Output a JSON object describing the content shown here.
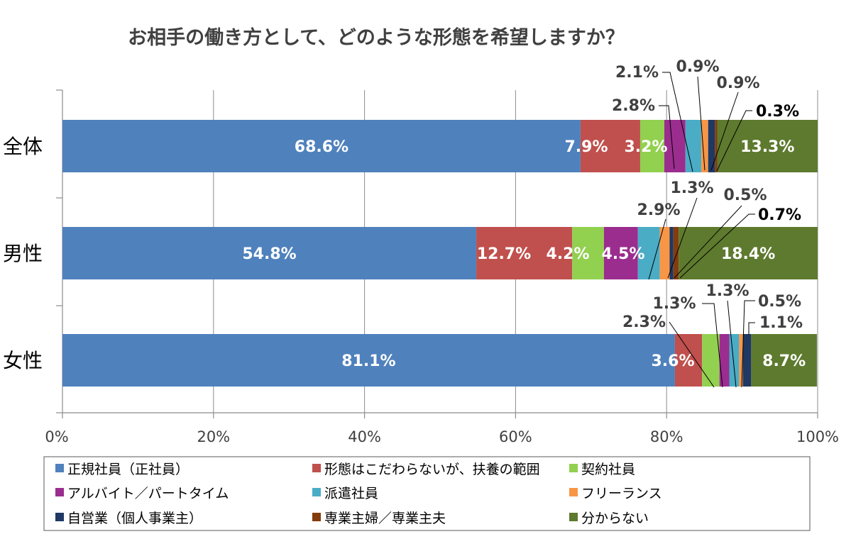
{
  "chart_data": {
    "type": "bar",
    "orientation": "horizontal-stacked-100",
    "title": "お相手の働き方として、どのような形態を希望しますか？",
    "categories": [
      "全体",
      "男性",
      "女性"
    ],
    "xlim": [
      0,
      100
    ],
    "x_ticks": [
      "0%",
      "20%",
      "40%",
      "60%",
      "80%",
      "100%"
    ],
    "legend_position": "bottom",
    "series": [
      {
        "name": "正規社員（正社員）",
        "color": "#4f81bd",
        "values": [
          68.6,
          54.8,
          81.1
        ],
        "labels": [
          "68.6%",
          "54.8%",
          "81.1%"
        ]
      },
      {
        "name": "形態はこだわらないが、扶養の範囲",
        "color": "#c0504d",
        "values": [
          7.9,
          12.7,
          3.6
        ],
        "labels": [
          "7.9%",
          "12.7%",
          "3.6%"
        ]
      },
      {
        "name": "契約社員",
        "color": "#92d050",
        "values": [
          3.2,
          4.2,
          2.3
        ],
        "labels": [
          "3.2%",
          "4.2%",
          "2.3%"
        ]
      },
      {
        "name": "アルバイト／パートタイム",
        "color": "#9b2d8f",
        "values": [
          2.8,
          4.5,
          1.3
        ],
        "labels": [
          "2.8%",
          "4.5%",
          "1.3%"
        ]
      },
      {
        "name": "派遣社員",
        "color": "#4bacc6",
        "values": [
          2.1,
          2.9,
          1.3
        ],
        "labels": [
          "2.1%",
          "2.9%",
          "1.3%"
        ]
      },
      {
        "name": "フリーランス",
        "color": "#f79646",
        "values": [
          0.9,
          1.3,
          0.5
        ],
        "labels": [
          "0.9%",
          "1.3%",
          "0.5%"
        ]
      },
      {
        "name": "自営業（個人事業主）",
        "color": "#1f3864",
        "values": [
          0.9,
          0.5,
          1.1
        ],
        "labels": [
          "0.9%",
          "0.5%",
          "1.1%"
        ]
      },
      {
        "name": "専業主婦／専業主夫",
        "color": "#843c0c",
        "values": [
          0.3,
          0.7,
          0.0
        ],
        "labels": [
          "0.3%",
          "0.7%",
          ""
        ]
      },
      {
        "name": "分からない",
        "color": "#5e7a2e",
        "values": [
          13.3,
          18.4,
          8.7
        ],
        "labels": [
          "13.3%",
          "18.4%",
          "8.7%"
        ]
      }
    ]
  }
}
